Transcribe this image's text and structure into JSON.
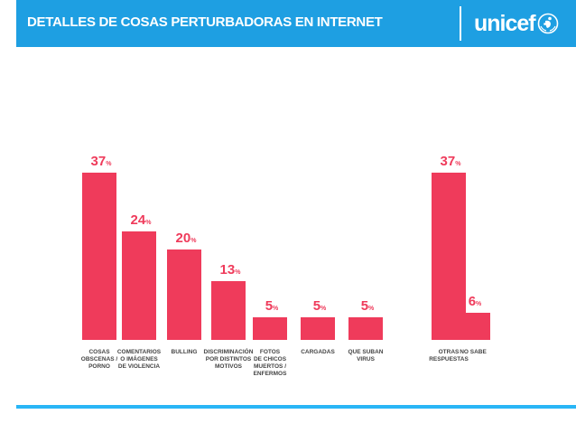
{
  "header": {
    "title": "DETALLES DE COSAS PERTURBADORAS EN INTERNET",
    "logo_text": "unicef"
  },
  "colors": {
    "header_bg": "#1e9fe2",
    "bar": "#ef3b5b",
    "label": "#444444",
    "bottom_line": "#29b6f6"
  },
  "chart_data": {
    "type": "bar",
    "title": "",
    "xlabel": "",
    "ylabel": "",
    "ylim": [
      0,
      37
    ],
    "grid": false,
    "value_suffix": "%",
    "categories": [
      [
        "COSAS",
        "OBSCENAS /",
        "PORNO"
      ],
      [
        "COMENTARIOS",
        "O IMÁGENES",
        "DE VIOLENCIA"
      ],
      [
        "BULLING"
      ],
      [
        "DISCRIMINACIÓN",
        "POR DISTINTOS",
        "MOTIVOS"
      ],
      [
        "FOTOS",
        "DE CHICOS",
        "MUERTOS /",
        "ENFERMOS"
      ],
      [
        "CARGADAS"
      ],
      [
        "QUE SUBAN",
        "VIRUS"
      ],
      [
        "OTRAS",
        "RESPUESTAS"
      ],
      [
        "NO SABE"
      ]
    ],
    "values": [
      37,
      24,
      20,
      13,
      5,
      5,
      5,
      37,
      6
    ]
  }
}
